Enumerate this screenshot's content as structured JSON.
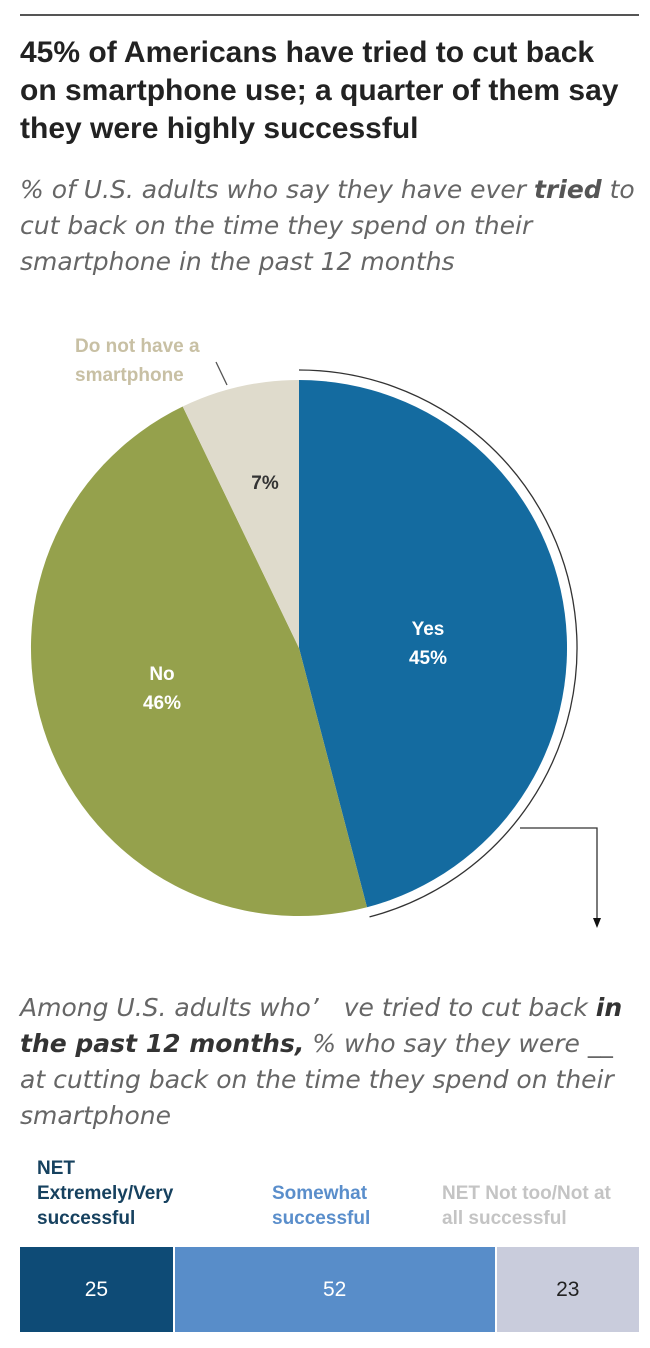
{
  "header": {
    "title": "45% of Americans have tried to cut back on smartphone use; a quarter of them say they were highly successful",
    "subtitle_pre": "% of U.S. adults who say they have ever ",
    "subtitle_bold": "tried",
    "subtitle_post": " to cut back on the time they spend on their smartphone in the past 12 months"
  },
  "chart_data": [
    {
      "type": "pie",
      "slices": [
        {
          "name": "Yes",
          "value": 45,
          "label": "45%",
          "color": "#146ba0"
        },
        {
          "name": "No",
          "value": 46,
          "label": "46%",
          "color": "#95a14c"
        },
        {
          "name": "Do not have a smartphone",
          "value": 7,
          "label": "7%",
          "color": "#dfdbcc"
        }
      ],
      "callout_label_lines": [
        "Do not have a",
        "smartphone"
      ]
    },
    {
      "type": "bar",
      "orientation": "horizontal-stacked",
      "subtitle_pre": "Among U.S. adults who’ ve tried to cut back ",
      "subtitle_bold": "in the past 12 months,",
      "subtitle_post": " % who say they were __ at cutting back on the time they spend on their smartphone",
      "series": [
        {
          "name": "NET Extremely/Very successful",
          "value": 25,
          "color": "#0e4b76",
          "text_color": "#ffffff",
          "header_color": "#16415f"
        },
        {
          "name": "Somewhat successful",
          "value": 52,
          "color": "#588dc9",
          "text_color": "#ffffff",
          "header_color": "#5a8ecb"
        },
        {
          "name": "NET Not too/Not at all successful",
          "value": 23,
          "color": "#c9ccdc",
          "text_color": "#222222",
          "header_color": "#c4c4c4"
        }
      ]
    }
  ]
}
